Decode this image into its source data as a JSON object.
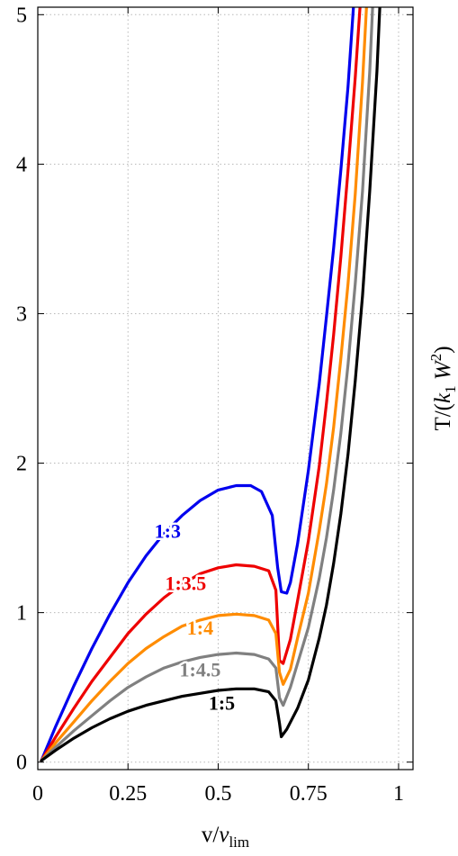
{
  "chart_data": {
    "type": "line",
    "title": "",
    "xlabel": "v/v_lim",
    "ylabel": "T/(k_1 W^2)",
    "xlim": [
      0,
      1.04
    ],
    "ylim": [
      -0.05,
      5.05
    ],
    "grid": true,
    "x_ticks": [
      {
        "value": 0,
        "label": "0"
      },
      {
        "value": 0.25,
        "label": "0.25"
      },
      {
        "value": 0.5,
        "label": "0.5"
      },
      {
        "value": 0.75,
        "label": "0.75"
      },
      {
        "value": 1,
        "label": "1"
      }
    ],
    "y_ticks": [
      {
        "value": 0,
        "label": "0"
      },
      {
        "value": 1,
        "label": "1"
      },
      {
        "value": 2,
        "label": "2"
      },
      {
        "value": 3,
        "label": "3"
      },
      {
        "value": 4,
        "label": "4"
      },
      {
        "value": 5,
        "label": "5"
      }
    ],
    "series": [
      {
        "name": "1:3",
        "color": "#0000ee",
        "label_at": [
          0.36,
          1.55
        ],
        "points": [
          [
            0.01,
            0.01
          ],
          [
            0.05,
            0.24
          ],
          [
            0.1,
            0.51
          ],
          [
            0.15,
            0.76
          ],
          [
            0.2,
            0.99
          ],
          [
            0.25,
            1.2
          ],
          [
            0.3,
            1.38
          ],
          [
            0.35,
            1.53
          ],
          [
            0.4,
            1.65
          ],
          [
            0.45,
            1.75
          ],
          [
            0.5,
            1.82
          ],
          [
            0.55,
            1.85
          ],
          [
            0.59,
            1.85
          ],
          [
            0.62,
            1.81
          ],
          [
            0.65,
            1.65
          ],
          [
            0.665,
            1.3
          ],
          [
            0.675,
            1.14
          ],
          [
            0.69,
            1.13
          ],
          [
            0.7,
            1.2
          ],
          [
            0.72,
            1.46
          ],
          [
            0.75,
            1.95
          ],
          [
            0.78,
            2.53
          ],
          [
            0.8,
            2.98
          ],
          [
            0.82,
            3.44
          ],
          [
            0.84,
            3.96
          ],
          [
            0.86,
            4.52
          ],
          [
            0.875,
            5.05
          ]
        ]
      },
      {
        "name": "1:3.5",
        "color": "#ee0000",
        "label_at": [
          0.41,
          1.2
        ],
        "points": [
          [
            0.01,
            0.01
          ],
          [
            0.05,
            0.17
          ],
          [
            0.1,
            0.36
          ],
          [
            0.15,
            0.54
          ],
          [
            0.2,
            0.7
          ],
          [
            0.25,
            0.86
          ],
          [
            0.3,
            0.99
          ],
          [
            0.35,
            1.1
          ],
          [
            0.4,
            1.19
          ],
          [
            0.45,
            1.26
          ],
          [
            0.5,
            1.3
          ],
          [
            0.55,
            1.32
          ],
          [
            0.6,
            1.31
          ],
          [
            0.64,
            1.28
          ],
          [
            0.66,
            1.15
          ],
          [
            0.67,
            0.68
          ],
          [
            0.68,
            0.66
          ],
          [
            0.7,
            0.82
          ],
          [
            0.72,
            1.08
          ],
          [
            0.75,
            1.48
          ],
          [
            0.78,
            1.98
          ],
          [
            0.8,
            2.4
          ],
          [
            0.82,
            2.86
          ],
          [
            0.84,
            3.38
          ],
          [
            0.86,
            3.96
          ],
          [
            0.88,
            4.58
          ],
          [
            0.893,
            5.05
          ]
        ]
      },
      {
        "name": "1:4",
        "color": "#ff8c00",
        "label_at": [
          0.45,
          0.9
        ],
        "points": [
          [
            0.01,
            0.01
          ],
          [
            0.05,
            0.13
          ],
          [
            0.1,
            0.27
          ],
          [
            0.15,
            0.41
          ],
          [
            0.2,
            0.54
          ],
          [
            0.25,
            0.66
          ],
          [
            0.3,
            0.76
          ],
          [
            0.35,
            0.84
          ],
          [
            0.4,
            0.91
          ],
          [
            0.45,
            0.95
          ],
          [
            0.5,
            0.98
          ],
          [
            0.55,
            0.99
          ],
          [
            0.6,
            0.98
          ],
          [
            0.64,
            0.95
          ],
          [
            0.66,
            0.86
          ],
          [
            0.67,
            0.6
          ],
          [
            0.68,
            0.52
          ],
          [
            0.7,
            0.62
          ],
          [
            0.72,
            0.83
          ],
          [
            0.75,
            1.13
          ],
          [
            0.78,
            1.55
          ],
          [
            0.8,
            1.86
          ],
          [
            0.82,
            2.24
          ],
          [
            0.84,
            2.7
          ],
          [
            0.86,
            3.2
          ],
          [
            0.88,
            3.8
          ],
          [
            0.9,
            4.55
          ],
          [
            0.911,
            5.05
          ]
        ]
      },
      {
        "name": "1:4.5",
        "color": "#808080",
        "label_at": [
          0.45,
          0.62
        ],
        "points": [
          [
            0.01,
            0.01
          ],
          [
            0.05,
            0.1
          ],
          [
            0.1,
            0.21
          ],
          [
            0.15,
            0.31
          ],
          [
            0.2,
            0.41
          ],
          [
            0.25,
            0.5
          ],
          [
            0.3,
            0.57
          ],
          [
            0.35,
            0.63
          ],
          [
            0.4,
            0.67
          ],
          [
            0.45,
            0.7
          ],
          [
            0.5,
            0.72
          ],
          [
            0.55,
            0.73
          ],
          [
            0.6,
            0.72
          ],
          [
            0.64,
            0.69
          ],
          [
            0.66,
            0.63
          ],
          [
            0.67,
            0.43
          ],
          [
            0.68,
            0.38
          ],
          [
            0.7,
            0.5
          ],
          [
            0.72,
            0.66
          ],
          [
            0.75,
            0.9
          ],
          [
            0.78,
            1.23
          ],
          [
            0.8,
            1.5
          ],
          [
            0.82,
            1.82
          ],
          [
            0.84,
            2.2
          ],
          [
            0.86,
            2.66
          ],
          [
            0.88,
            3.2
          ],
          [
            0.9,
            3.82
          ],
          [
            0.92,
            4.62
          ],
          [
            0.928,
            5.05
          ]
        ]
      },
      {
        "name": "1:5",
        "color": "#000000",
        "label_at": [
          0.51,
          0.4
        ],
        "points": [
          [
            0.01,
            0.01
          ],
          [
            0.05,
            0.08
          ],
          [
            0.1,
            0.16
          ],
          [
            0.15,
            0.23
          ],
          [
            0.2,
            0.29
          ],
          [
            0.25,
            0.34
          ],
          [
            0.3,
            0.38
          ],
          [
            0.35,
            0.41
          ],
          [
            0.4,
            0.44
          ],
          [
            0.45,
            0.46
          ],
          [
            0.5,
            0.48
          ],
          [
            0.55,
            0.49
          ],
          [
            0.6,
            0.49
          ],
          [
            0.64,
            0.47
          ],
          [
            0.66,
            0.41
          ],
          [
            0.67,
            0.26
          ],
          [
            0.675,
            0.17
          ],
          [
            0.69,
            0.22
          ],
          [
            0.72,
            0.36
          ],
          [
            0.75,
            0.55
          ],
          [
            0.78,
            0.83
          ],
          [
            0.8,
            1.05
          ],
          [
            0.82,
            1.33
          ],
          [
            0.84,
            1.66
          ],
          [
            0.86,
            2.06
          ],
          [
            0.88,
            2.55
          ],
          [
            0.9,
            3.12
          ],
          [
            0.92,
            3.82
          ],
          [
            0.94,
            4.62
          ],
          [
            0.948,
            5.05
          ]
        ]
      }
    ]
  }
}
